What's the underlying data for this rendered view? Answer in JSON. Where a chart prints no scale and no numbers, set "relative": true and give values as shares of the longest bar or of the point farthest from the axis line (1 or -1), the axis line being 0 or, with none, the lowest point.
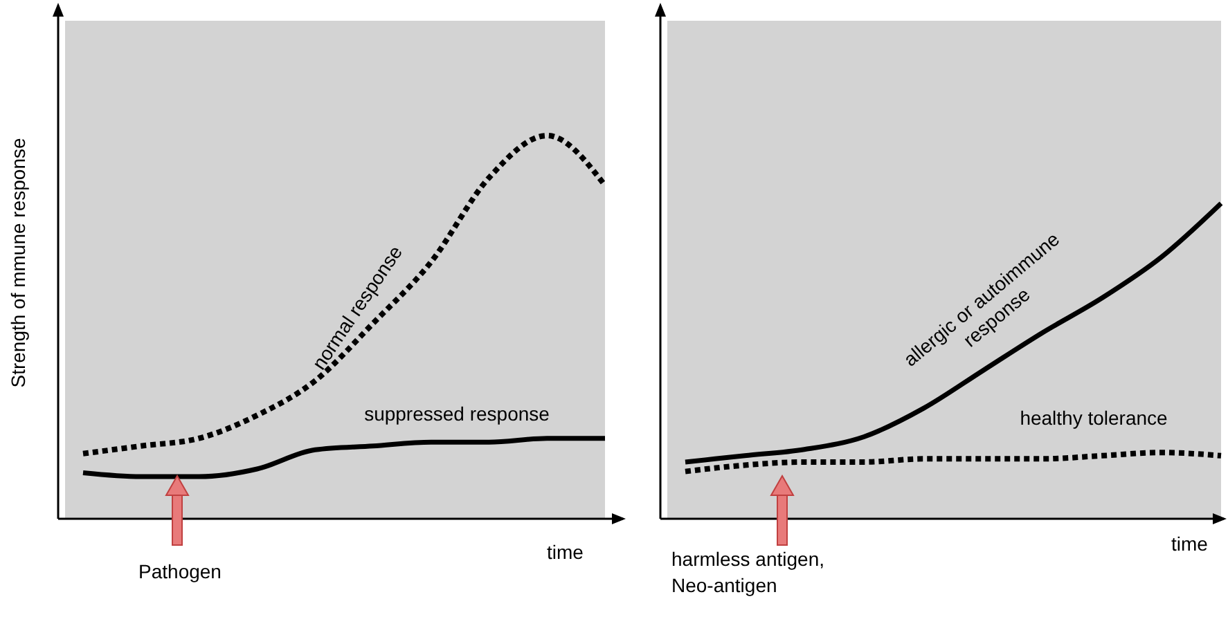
{
  "chart_data": [
    {
      "type": "line",
      "relative": true,
      "ylabel": "Strength of mmune response",
      "xlabel": "time",
      "categories": [
        null,
        null,
        null,
        null,
        null,
        null,
        null,
        null,
        null,
        null
      ],
      "annotations": [
        "Pathogen"
      ],
      "series": [
        {
          "name": "normal response",
          "color": "#000000",
          "line_style": "dotted",
          "values": [
            0.17,
            0.19,
            0.21,
            0.27,
            0.36,
            0.51,
            0.67,
            0.89,
            1,
            0.87
          ]
        },
        {
          "name": "suppressed response",
          "color": "#000000",
          "line_style": "solid",
          "values": [
            0.12,
            0.11,
            0.11,
            0.13,
            0.18,
            0.19,
            0.2,
            0.2,
            0.21,
            0.21
          ]
        }
      ]
    },
    {
      "type": "line",
      "relative": true,
      "xlabel": "time",
      "categories": [
        null,
        null,
        null,
        null,
        null,
        null,
        null,
        null,
        null,
        null
      ],
      "annotations": [
        "harmless antigen, Neo-antigen"
      ],
      "series": [
        {
          "name": "allergic or autoimmune response",
          "color": "#000000",
          "line_style": "solid",
          "values": [
            0.18,
            0.2,
            0.22,
            0.26,
            0.35,
            0.47,
            0.59,
            0.7,
            0.83,
            1
          ]
        },
        {
          "name": "healthy tolerance",
          "color": "#000000",
          "line_style": "dotted",
          "values": [
            0.15,
            0.17,
            0.18,
            0.18,
            0.19,
            0.19,
            0.19,
            0.2,
            0.21,
            0.2
          ]
        }
      ]
    }
  ]
}
